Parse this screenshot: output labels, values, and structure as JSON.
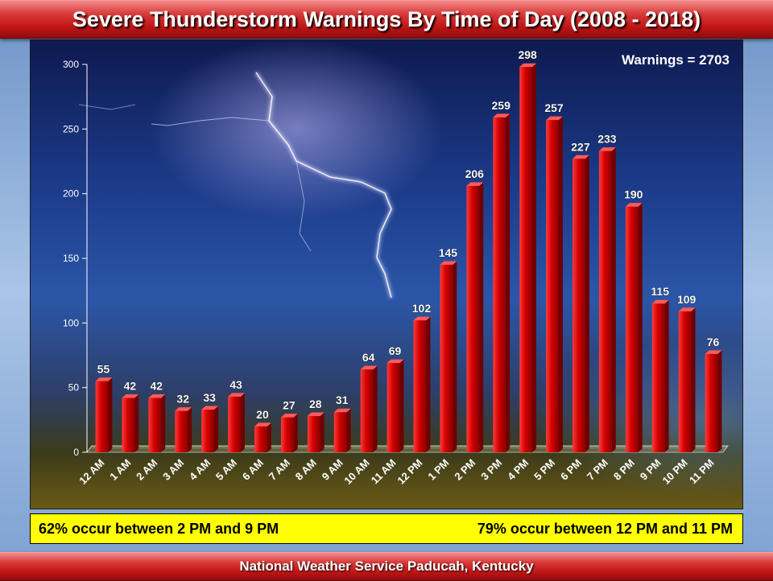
{
  "header": {
    "title": "Severe Thunderstorm Warnings By Time of Day (2008 - 2018)"
  },
  "footer": {
    "credit": "National  Weather Service Paducah,  Kentucky"
  },
  "notes": {
    "left": "62% occur between 2 PM and 9 PM",
    "right": "79% occur between 12 PM and 11 PM"
  },
  "colors": {
    "bar": "#d40000",
    "bar_dark": "#7a0000",
    "banner": "#c01616",
    "note_bg": "#ffff00"
  },
  "chart_data": {
    "type": "bar",
    "title": "Severe Thunderstorm Warnings By Time of Day (2008 - 2018)",
    "annotation": "Warnings = 2703",
    "categories": [
      "12 AM",
      "1 AM",
      "2 AM",
      "3 AM",
      "4 AM",
      "5 AM",
      "6 AM",
      "7 AM",
      "8 AM",
      "9 AM",
      "10 AM",
      "11 AM",
      "12 PM",
      "1 PM",
      "2 PM",
      "3 PM",
      "4 PM",
      "5 PM",
      "6 PM",
      "7 PM",
      "8 PM",
      "9 PM",
      "10 PM",
      "11 PM"
    ],
    "values": [
      55,
      42,
      42,
      32,
      33,
      43,
      20,
      27,
      28,
      31,
      64,
      69,
      102,
      145,
      206,
      259,
      298,
      257,
      227,
      233,
      190,
      115,
      109,
      76
    ],
    "yticks": [
      0,
      50,
      100,
      150,
      200,
      250,
      300
    ],
    "ylim": [
      0,
      300
    ],
    "grid": false,
    "data_labels": true
  }
}
